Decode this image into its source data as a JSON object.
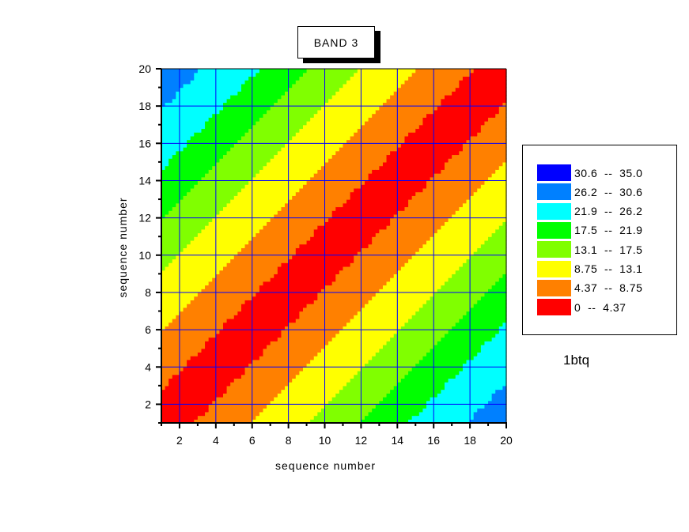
{
  "chart_data": {
    "type": "heatmap",
    "subtype": "filled-contour",
    "title": "BAND 3",
    "xlabel": "sequence number",
    "ylabel": "sequence number",
    "xlim": [
      1,
      20
    ],
    "ylim": [
      1,
      20
    ],
    "xticks": [
      "2",
      "4",
      "6",
      "8",
      "10",
      "12",
      "14",
      "16",
      "18",
      "20"
    ],
    "yticks": [
      "2",
      "4",
      "6",
      "8",
      "10",
      "12",
      "14",
      "16",
      "18",
      "20"
    ],
    "grid": true,
    "dataset_label": "1btq",
    "legend_placement": "right",
    "levels": [
      {
        "label_low": "30.6",
        "label_high": "35.0",
        "low": 30.6,
        "high": 35.0,
        "color": "#0000ff"
      },
      {
        "label_low": "26.2",
        "label_high": "30.6",
        "low": 26.2,
        "high": 30.6,
        "color": "#0080ff"
      },
      {
        "label_low": "21.9",
        "label_high": "26.2",
        "low": 21.9,
        "high": 26.2,
        "color": "#00ffff"
      },
      {
        "label_low": "17.5",
        "label_high": "21.9",
        "low": 17.5,
        "high": 21.9,
        "color": "#00ff00"
      },
      {
        "label_low": "13.1",
        "label_high": "17.5",
        "low": 13.1,
        "high": 17.5,
        "color": "#80ff00"
      },
      {
        "label_low": "8.75",
        "label_high": "13.1",
        "low": 8.75,
        "high": 13.1,
        "color": "#ffff00"
      },
      {
        "label_low": "4.37",
        "label_high": "8.75",
        "low": 4.37,
        "high": 8.75,
        "color": "#ff8000"
      },
      {
        "label_low": "0",
        "label_high": "4.37",
        "low": 0,
        "high": 4.37,
        "color": "#ff0000"
      }
    ],
    "z_rows_y1_to_y20": [
      [
        0,
        2.9,
        4.8,
        6.1,
        7.5,
        8.8,
        10.2,
        11.6,
        12.9,
        14.5,
        16,
        17.5,
        19.2,
        20.9,
        22.6,
        23.9,
        25.1,
        26.3,
        28.5,
        31
      ],
      [
        2.9,
        0,
        2.9,
        4.8,
        6.1,
        7.5,
        8.8,
        10.2,
        11.6,
        12.9,
        14.5,
        16,
        17.5,
        19.2,
        20.9,
        22.6,
        23.9,
        25.1,
        26.3,
        28.5
      ],
      [
        4.8,
        2.9,
        0,
        2.9,
        4.8,
        6.1,
        7.5,
        8.8,
        10.2,
        11.6,
        12.9,
        14.5,
        16,
        17.5,
        19.2,
        20.9,
        22.6,
        23.9,
        25.1,
        26.3
      ],
      [
        6.1,
        4.8,
        2.9,
        0,
        2.9,
        4.8,
        6.1,
        7.5,
        8.8,
        10.2,
        11.6,
        12.9,
        14.5,
        16,
        17.5,
        19.2,
        20.9,
        22.6,
        23.9,
        25.1
      ],
      [
        7.5,
        6.1,
        4.8,
        2.9,
        0,
        2.9,
        4.8,
        6.1,
        7.5,
        8.8,
        10.2,
        11.6,
        12.9,
        14.5,
        16,
        17.5,
        19.2,
        20.9,
        22.6,
        23.9
      ],
      [
        8.8,
        7.5,
        6.1,
        4.8,
        2.9,
        0,
        2.9,
        4.8,
        6.1,
        7.5,
        8.8,
        10.2,
        11.6,
        12.9,
        14.5,
        16,
        17.5,
        19.2,
        20.9,
        22.6
      ],
      [
        10.2,
        8.8,
        7.5,
        6.1,
        4.8,
        2.9,
        0,
        2.9,
        4.8,
        6.1,
        7.5,
        8.8,
        10.2,
        11.6,
        12.9,
        14.5,
        16,
        17.5,
        19.2,
        20.9
      ],
      [
        11.6,
        10.2,
        8.8,
        7.5,
        6.1,
        4.8,
        2.9,
        0,
        2.9,
        4.8,
        6.1,
        7.5,
        8.8,
        10.2,
        11.6,
        12.9,
        14.5,
        16,
        17.5,
        19.2
      ],
      [
        12.9,
        11.6,
        10.2,
        8.8,
        7.5,
        6.1,
        4.8,
        2.9,
        0,
        2.9,
        4.8,
        6.1,
        7.5,
        8.8,
        10.2,
        11.6,
        12.9,
        14.5,
        16,
        17.5
      ],
      [
        14.5,
        12.9,
        11.6,
        10.2,
        8.8,
        7.5,
        6.1,
        4.8,
        2.9,
        0,
        2.9,
        4.8,
        6.1,
        7.5,
        8.8,
        10.2,
        11.6,
        12.9,
        14.5,
        16
      ],
      [
        16,
        14.5,
        12.9,
        11.6,
        10.2,
        8.8,
        7.5,
        6.1,
        4.8,
        2.9,
        0,
        2.9,
        4.8,
        6.1,
        7.5,
        8.8,
        10.2,
        11.6,
        12.9,
        14.5
      ],
      [
        17.5,
        16,
        14.5,
        12.9,
        11.6,
        10.2,
        8.8,
        7.5,
        6.1,
        4.8,
        2.9,
        0,
        2.9,
        4.8,
        6.1,
        7.5,
        8.8,
        10.2,
        11.6,
        12.9
      ],
      [
        19.2,
        17.5,
        16,
        14.5,
        12.9,
        11.6,
        10.2,
        8.8,
        7.5,
        6.1,
        4.8,
        2.9,
        0,
        2.9,
        4.8,
        6.1,
        7.5,
        8.8,
        10.2,
        11.6
      ],
      [
        20.9,
        19.2,
        17.5,
        16,
        14.5,
        12.9,
        11.6,
        10.2,
        8.8,
        7.5,
        6.1,
        4.8,
        2.9,
        0,
        2.9,
        4.8,
        6.1,
        7.5,
        8.8,
        10.2
      ],
      [
        22.6,
        20.9,
        19.2,
        17.5,
        16,
        14.5,
        12.9,
        11.6,
        10.2,
        8.8,
        7.5,
        6.1,
        4.8,
        2.9,
        0,
        2.9,
        4.8,
        6.1,
        7.5,
        8.8
      ],
      [
        23.9,
        22.6,
        20.9,
        19.2,
        17.5,
        16,
        14.5,
        12.9,
        11.6,
        10.2,
        8.8,
        7.5,
        6.1,
        4.8,
        2.9,
        0,
        2.9,
        4.8,
        6.1,
        7.5
      ],
      [
        25.1,
        23.9,
        22.6,
        20.9,
        19.2,
        17.5,
        16,
        14.5,
        12.9,
        11.6,
        10.2,
        8.8,
        7.5,
        6.1,
        4.8,
        2.9,
        0,
        2.9,
        4.8,
        6.1
      ],
      [
        26.3,
        25.1,
        23.9,
        22.6,
        20.9,
        19.2,
        17.5,
        16,
        14.5,
        12.9,
        11.6,
        10.2,
        8.8,
        7.5,
        6.1,
        4.8,
        2.9,
        0,
        2.9,
        4.8
      ],
      [
        28.5,
        26.3,
        25.1,
        23.9,
        22.6,
        20.9,
        19.2,
        17.5,
        16,
        14.5,
        12.9,
        11.6,
        10.2,
        8.8,
        7.5,
        6.1,
        4.8,
        2.9,
        0,
        2.9
      ],
      [
        31,
        28.5,
        26.3,
        25.1,
        23.9,
        22.6,
        20.9,
        19.2,
        17.5,
        16,
        14.5,
        12.9,
        11.6,
        10.2,
        8.8,
        7.5,
        6.1,
        4.8,
        2.9,
        0
      ]
    ],
    "colors": {
      "grid": "#0000ff",
      "axis": "#000000"
    }
  }
}
